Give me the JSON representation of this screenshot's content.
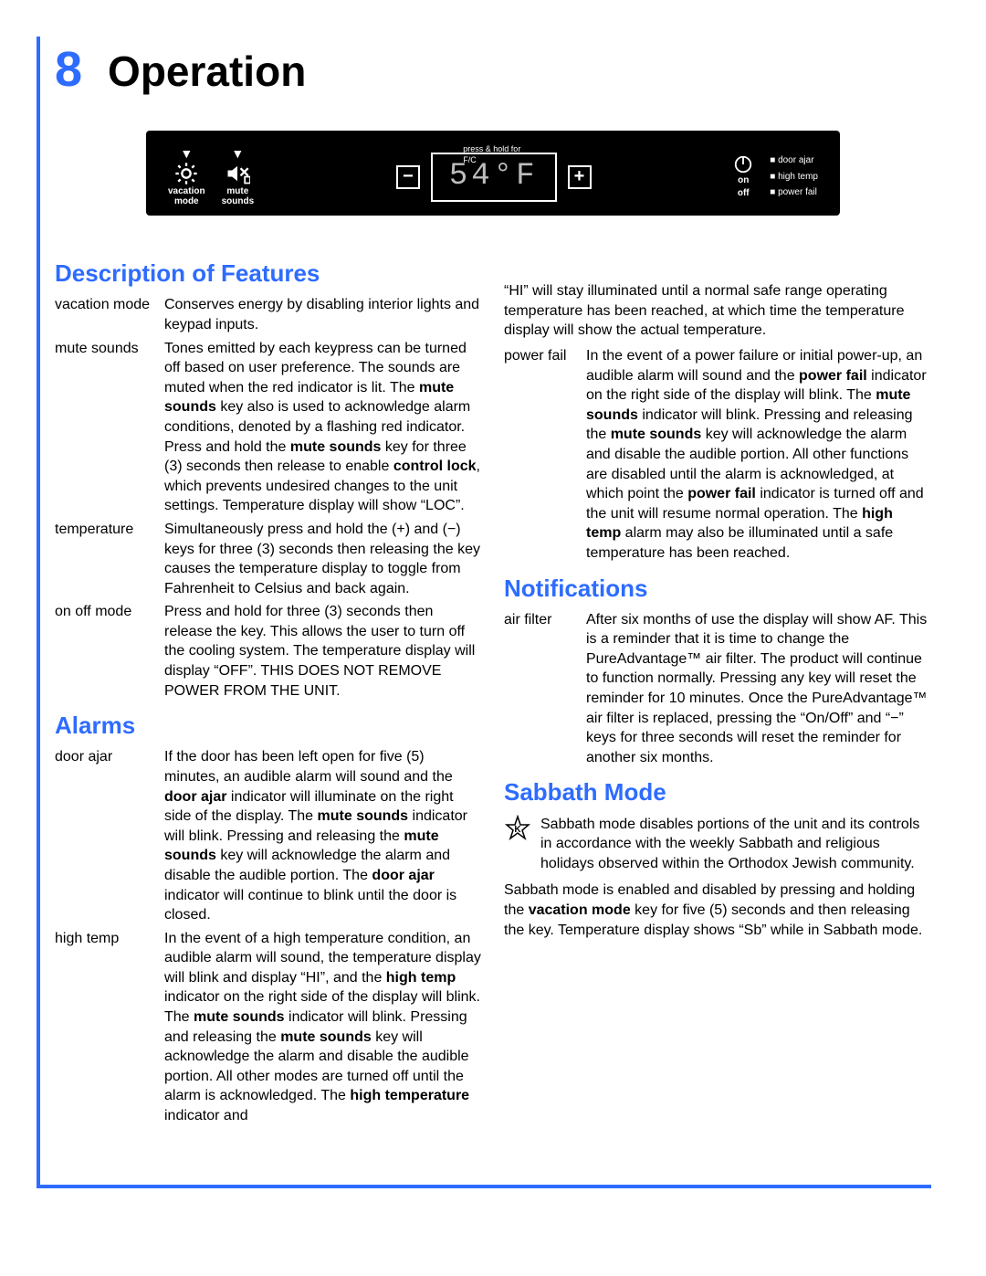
{
  "chapter": {
    "number": "8",
    "title": "Operation"
  },
  "panel": {
    "vacation_label1": "vacation",
    "vacation_label2": "mode",
    "mute_label1": "mute",
    "mute_label2": "sounds",
    "lcd_hint": "press & hold for F/C",
    "lcd_value": "54°F",
    "minus": "−",
    "plus": "+",
    "on_label": "on",
    "off_label": "off",
    "indicators": {
      "0": "door ajar",
      "1": "high temp",
      "2": "power fail"
    }
  },
  "headings": {
    "features": "Description of Features",
    "alarms": "Alarms",
    "notifications": "Notifications",
    "sabbath": "Sabbath Mode"
  },
  "features": {
    "vacation": {
      "label": "vacation mode",
      "text": "Conserves energy by disabling interior lights and keypad inputs."
    },
    "mute": {
      "label": "mute sounds",
      "text_html": "Tones emitted by each keypress can be turned off based on user preference. The sounds are muted when the red indicator is lit. The <b>mute sounds</b> key also is used to acknowledge alarm conditions, denoted by a ﬂashing red indicator. Press and hold the <b>mute sounds</b> key for three (3) seconds then release to enable <b>control lock</b>, which prevents undesired changes to the unit settings. Temperature display will show “LOC”."
    },
    "temperature": {
      "label": "temperature",
      "text": "Simultaneously press and hold the (+) and (−) keys for three (3) seconds then releasing the key causes the temperature display to toggle from Fahrenheit to Celsius and back again."
    },
    "onoff": {
      "label": "on off mode",
      "text": "Press and hold for three (3) seconds then release the key. This allows the user to turn off the cooling system. The temperature display will display “OFF”. THIS DOES NOT REMOVE POWER FROM THE UNIT."
    }
  },
  "alarms": {
    "door_ajar": {
      "label": "door ajar",
      "text_html": "If the door has been left open for ﬁve (5) minutes, an audible alarm will sound and the <b>door ajar</b> indicator will illuminate on the right side of the display. The <b>mute sounds</b> indicator will blink. Pressing and releasing the <b>mute sounds</b> key will acknowledge the alarm and disable the audible portion. The <b>door ajar</b> indicator will continue to blink until the door is closed."
    },
    "high_temp": {
      "label": "high temp",
      "text_html": "In the event of a high temperature condition, an audible alarm will sound, the temperature display will blink and display “HI”, and the <b>high temp</b> indicator on the right side of the display will blink. The <b>mute sounds</b> indicator will blink. Pressing and releasing the <b>mute sounds</b> key will acknowledge the alarm and disable the audible portion. All other modes are turned off until the alarm is acknowledged. The <b>high temperature</b> indicator and"
    },
    "high_temp_cont": "“HI” will stay illuminated until a normal safe range operating temperature has been reached, at which time the temperature display will show the actual temperature.",
    "power_fail": {
      "label": "power fail",
      "text_html": "In the event of a power failure or initial power-up, an audible alarm will sound and the <b>power fail</b> indicator on the right side of the display will blink. The <b>mute sounds</b> indicator will blink. Pressing and releasing the <b>mute sounds</b> key will acknowledge the alarm and disable the audible portion. All other functions are disabled until the alarm is acknowledged, at which point the <b>power fail</b> indicator is turned off and the unit will resume normal operation. The <b>high temp</b> alarm may also be illuminated until a safe temperature has been reached."
    }
  },
  "notifications": {
    "air_filter": {
      "label": "air ﬁlter",
      "text": "After six months of use the display will show AF. This is a reminder that it is time to change the PureAdvantage™ air ﬁlter. The product will continue to function normally. Pressing any key will reset the reminder for 10 minutes. Once the PureAdvantage™ air ﬁlter is replaced, pressing the “On/Off” and “−” keys for three seconds will reset the reminder for another six months."
    }
  },
  "sabbath": {
    "icon_label": "K",
    "intro": "Sabbath mode disables portions of the unit and its controls in accordance with the weekly Sabbath and religious holidays observed within the Orthodox Jewish community.",
    "body_html": "Sabbath mode is enabled and disabled by pressing and holding the <b>vacation mode</b> key for five (5) seconds and then releasing the key. Temperature display shows “Sb” while in Sabbath mode."
  },
  "colors": {
    "accent": "#2e6cff",
    "panel_bg": "#000000",
    "text": "#000000"
  }
}
